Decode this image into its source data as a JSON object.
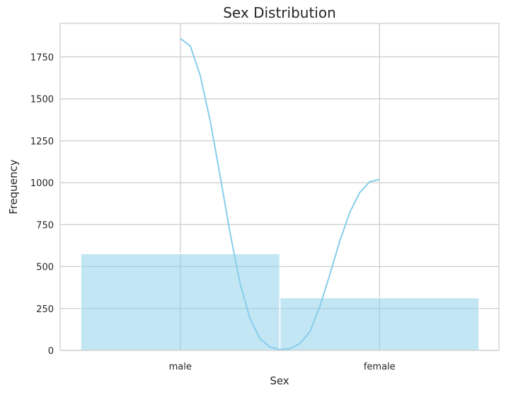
{
  "chart_data": {
    "type": "bar",
    "title": "Sex Distribution",
    "xlabel": "Sex",
    "ylabel": "Frequency",
    "categories": [
      "male",
      "female"
    ],
    "values": [
      577,
      314
    ],
    "ylim": [
      0,
      1950
    ],
    "yticks": [
      0,
      250,
      500,
      750,
      1000,
      1250,
      1500,
      1750
    ],
    "ytick_labels": [
      "0",
      "250",
      "500",
      "750",
      "1000",
      "1250",
      "1500",
      "1750"
    ],
    "grid": true,
    "bar_color": "#87ceeb",
    "kde": {
      "color": "#87ceeb",
      "x": [
        0,
        0.05,
        0.1,
        0.15,
        0.2,
        0.25,
        0.3,
        0.35,
        0.4,
        0.45,
        0.5,
        0.55,
        0.6,
        0.65,
        0.7,
        0.75,
        0.8,
        0.85,
        0.9,
        0.95,
        1
      ],
      "y": [
        1860,
        1815,
        1640,
        1370,
        1040,
        700,
        400,
        190,
        70,
        20,
        5,
        10,
        40,
        110,
        260,
        450,
        650,
        820,
        940,
        1005,
        1020
      ]
    }
  }
}
